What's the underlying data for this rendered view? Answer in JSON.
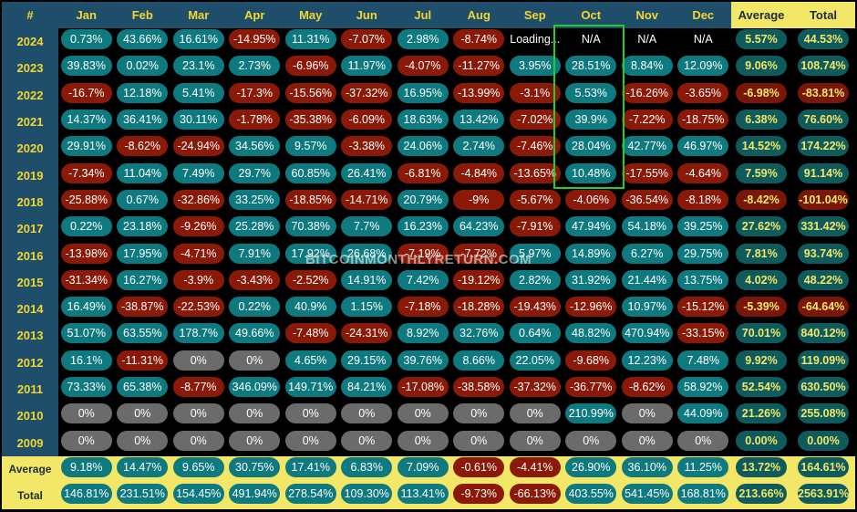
{
  "headers": [
    "#",
    "Jan",
    "Feb",
    "Mar",
    "Apr",
    "May",
    "Jun",
    "Jul",
    "Aug",
    "Sep",
    "Oct",
    "Nov",
    "Dec",
    "Average",
    "Total"
  ],
  "rows": [
    {
      "year": "2024",
      "cells": [
        "0.73%",
        "43.66%",
        "16.61%",
        "-14.95%",
        "11.31%",
        "-7.07%",
        "2.98%",
        "-8.74%",
        "Loading...",
        "N/A",
        "N/A",
        "N/A",
        "5.57%",
        "44.53%"
      ]
    },
    {
      "year": "2023",
      "cells": [
        "39.83%",
        "0.02%",
        "23.1%",
        "2.73%",
        "-6.96%",
        "11.97%",
        "-4.07%",
        "-11.27%",
        "3.95%",
        "28.51%",
        "8.84%",
        "12.09%",
        "9.06%",
        "108.74%"
      ]
    },
    {
      "year": "2022",
      "cells": [
        "-16.7%",
        "12.18%",
        "5.41%",
        "-17.3%",
        "-15.56%",
        "-37.32%",
        "16.95%",
        "-13.99%",
        "-3.1%",
        "5.53%",
        "-16.26%",
        "-3.65%",
        "-6.98%",
        "-83.81%"
      ]
    },
    {
      "year": "2021",
      "cells": [
        "14.37%",
        "36.41%",
        "30.11%",
        "-1.78%",
        "-35.38%",
        "-6.09%",
        "18.63%",
        "13.42%",
        "-7.02%",
        "39.9%",
        "-7.22%",
        "-18.75%",
        "6.38%",
        "76.60%"
      ]
    },
    {
      "year": "2020",
      "cells": [
        "29.91%",
        "-8.62%",
        "-24.94%",
        "34.56%",
        "9.57%",
        "-3.38%",
        "24.06%",
        "2.74%",
        "-7.46%",
        "28.04%",
        "42.77%",
        "46.97%",
        "14.52%",
        "174.22%"
      ]
    },
    {
      "year": "2019",
      "cells": [
        "-7.34%",
        "11.04%",
        "7.49%",
        "29.7%",
        "60.85%",
        "26.41%",
        "-6.81%",
        "-4.84%",
        "-13.65%",
        "10.48%",
        "-17.55%",
        "-4.64%",
        "7.59%",
        "91.14%"
      ]
    },
    {
      "year": "2018",
      "cells": [
        "-25.88%",
        "0.67%",
        "-32.86%",
        "33.25%",
        "-18.85%",
        "-14.71%",
        "20.79%",
        "-9%",
        "-5.67%",
        "-4.06%",
        "-36.54%",
        "-8.18%",
        "-8.42%",
        "-101.04%"
      ]
    },
    {
      "year": "2017",
      "cells": [
        "0.22%",
        "23.18%",
        "-9.26%",
        "25.28%",
        "70.38%",
        "7.7%",
        "16.23%",
        "64.23%",
        "-7.91%",
        "47.94%",
        "54.18%",
        "39.25%",
        "27.62%",
        "331.42%"
      ]
    },
    {
      "year": "2016",
      "cells": [
        "-13.98%",
        "17.95%",
        "-4.71%",
        "7.91%",
        "17.92%",
        "26.68%",
        "-7.19%",
        "-7.72%",
        "5.97%",
        "14.89%",
        "6.27%",
        "29.75%",
        "7.81%",
        "93.74%"
      ]
    },
    {
      "year": "2015",
      "cells": [
        "-31.34%",
        "16.27%",
        "-3.9%",
        "-3.43%",
        "-2.52%",
        "14.91%",
        "7.42%",
        "-19.12%",
        "2.82%",
        "31.92%",
        "21.44%",
        "13.75%",
        "4.02%",
        "48.22%"
      ]
    },
    {
      "year": "2014",
      "cells": [
        "16.49%",
        "-38.87%",
        "-22.53%",
        "0.22%",
        "40.9%",
        "1.15%",
        "-7.18%",
        "-18.28%",
        "-19.43%",
        "-12.96%",
        "10.97%",
        "-15.12%",
        "-5.39%",
        "-64.64%"
      ]
    },
    {
      "year": "2013",
      "cells": [
        "51.07%",
        "63.55%",
        "178.7%",
        "49.66%",
        "-7.48%",
        "-24.31%",
        "8.92%",
        "32.76%",
        "0.64%",
        "48.82%",
        "470.94%",
        "-33.15%",
        "70.01%",
        "840.12%"
      ]
    },
    {
      "year": "2012",
      "cells": [
        "16.1%",
        "-11.31%",
        "0%",
        "0%",
        "4.65%",
        "29.15%",
        "39.76%",
        "8.66%",
        "22.05%",
        "-9.68%",
        "12.23%",
        "7.48%",
        "9.92%",
        "119.09%"
      ]
    },
    {
      "year": "2011",
      "cells": [
        "73.33%",
        "65.38%",
        "-8.77%",
        "346.09%",
        "149.71%",
        "84.21%",
        "-17.08%",
        "-38.58%",
        "-37.32%",
        "-36.77%",
        "-8.62%",
        "58.92%",
        "52.54%",
        "630.50%"
      ]
    },
    {
      "year": "2010",
      "cells": [
        "0%",
        "0%",
        "0%",
        "0%",
        "0%",
        "0%",
        "0%",
        "0%",
        "0%",
        "210.99%",
        "0%",
        "44.09%",
        "21.26%",
        "255.08%"
      ]
    },
    {
      "year": "2009",
      "cells": [
        "0%",
        "0%",
        "0%",
        "0%",
        "0%",
        "0%",
        "0%",
        "0%",
        "0%",
        "0%",
        "0%",
        "0%",
        "0.00%",
        "0.00%"
      ]
    }
  ],
  "footer": [
    {
      "label": "Average",
      "cells": [
        "9.18%",
        "14.47%",
        "9.65%",
        "30.75%",
        "17.41%",
        "6.83%",
        "7.09%",
        "-0.61%",
        "-4.41%",
        "26.90%",
        "36.10%",
        "11.25%",
        "13.72%",
        "164.61%"
      ]
    },
    {
      "label": "Total",
      "cells": [
        "146.81%",
        "231.51%",
        "154.45%",
        "491.94%",
        "278.54%",
        "109.30%",
        "113.41%",
        "-9.73%",
        "-66.13%",
        "403.55%",
        "541.45%",
        "168.81%",
        "213.66%",
        "2563.91%"
      ]
    }
  ],
  "watermark": "BITCOINMONTHLYRETURN.COM",
  "colors": {
    "positive": "#0e7a7f",
    "negative": "#8a1a07",
    "zero": "#6b6b6b",
    "header_bg": "#1f4e6b",
    "header_text": "#f2d72f",
    "summary_bg": "#f2e766",
    "highlight": "#21d02a"
  }
}
